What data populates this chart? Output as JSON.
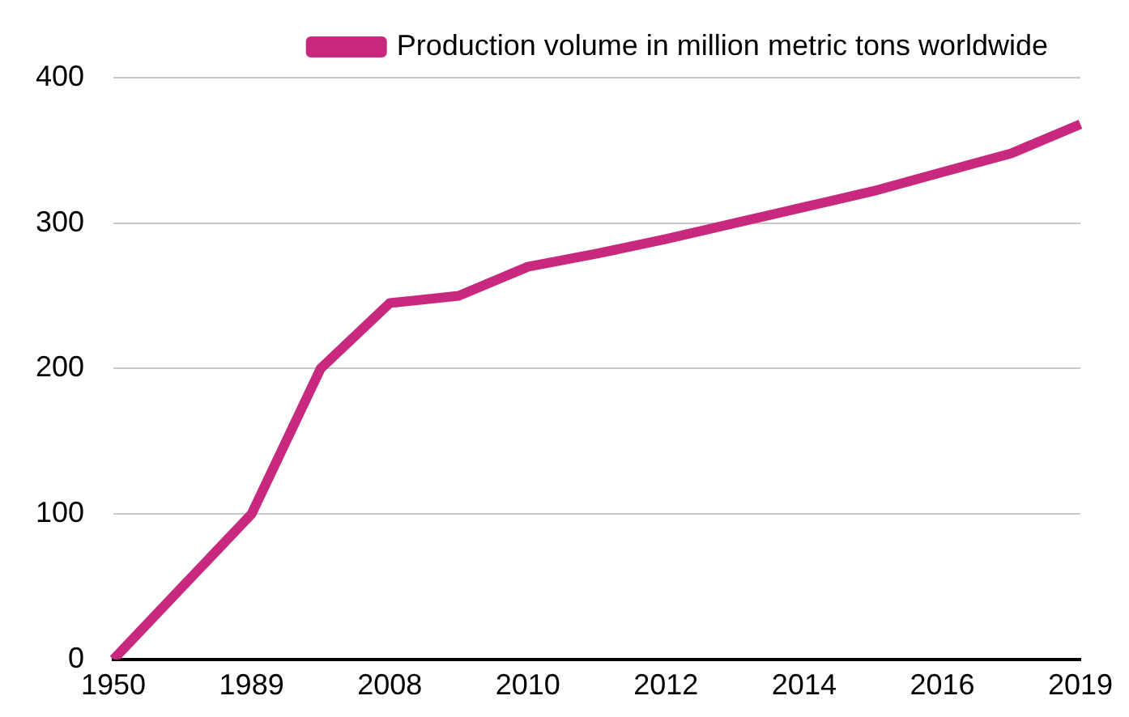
{
  "chart_data": {
    "type": "line",
    "categories": [
      "1950",
      null,
      "1989",
      null,
      "2008",
      null,
      "2010",
      null,
      "2012",
      null,
      "2014",
      null,
      "2016",
      null,
      "2019"
    ],
    "series": [
      {
        "name": "Production volume in million metric tons worldwide",
        "color": "#c8287d",
        "values": [
          0,
          50,
          100,
          200,
          245,
          250,
          270,
          279,
          289,
          300,
          311,
          322,
          335,
          348,
          368
        ]
      }
    ],
    "ylim": [
      0,
      400
    ],
    "yticks": [
      0,
      100,
      200,
      300,
      400
    ],
    "grid": "y",
    "legend": "top right",
    "marker": "none",
    "line_style": "solid"
  }
}
